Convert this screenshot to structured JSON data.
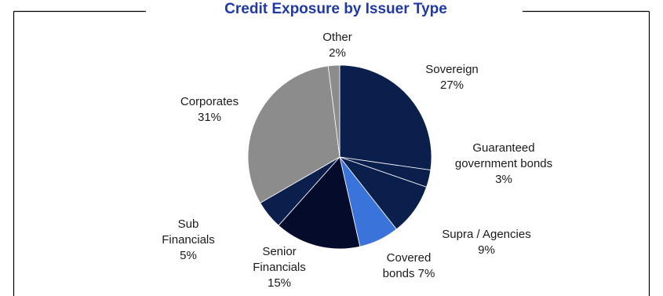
{
  "chart_data": {
    "type": "pie",
    "title": "Credit Exposure by Issuer Type",
    "slices": [
      {
        "label_lines": [
          "Sovereign",
          "27%"
        ],
        "value": 27,
        "color": "#0b1f4d"
      },
      {
        "label_lines": [
          "Guaranteed",
          "government bonds",
          "3%"
        ],
        "value": 3,
        "color": "#0b1f4d"
      },
      {
        "label_lines": [
          "Supra / Agencies",
          "9%"
        ],
        "value": 9,
        "color": "#0b1f4d"
      },
      {
        "label_lines": [
          "Covered",
          "bonds 7%"
        ],
        "value": 7,
        "color": "#3a73d9"
      },
      {
        "label_lines": [
          "Senior",
          "Financials",
          "15%"
        ],
        "value": 15,
        "color": "#050b2a"
      },
      {
        "label_lines": [
          "Sub",
          "Financials",
          "5%"
        ],
        "value": 5,
        "color": "#0b1f4d"
      },
      {
        "label_lines": [
          "Corporates",
          "31%"
        ],
        "value": 31,
        "color": "#8c8c8c"
      },
      {
        "label_lines": [
          "Other",
          "2%"
        ],
        "value": 2,
        "color": "#8c8c8c"
      }
    ],
    "legend": "none",
    "border_color": "#000000"
  }
}
